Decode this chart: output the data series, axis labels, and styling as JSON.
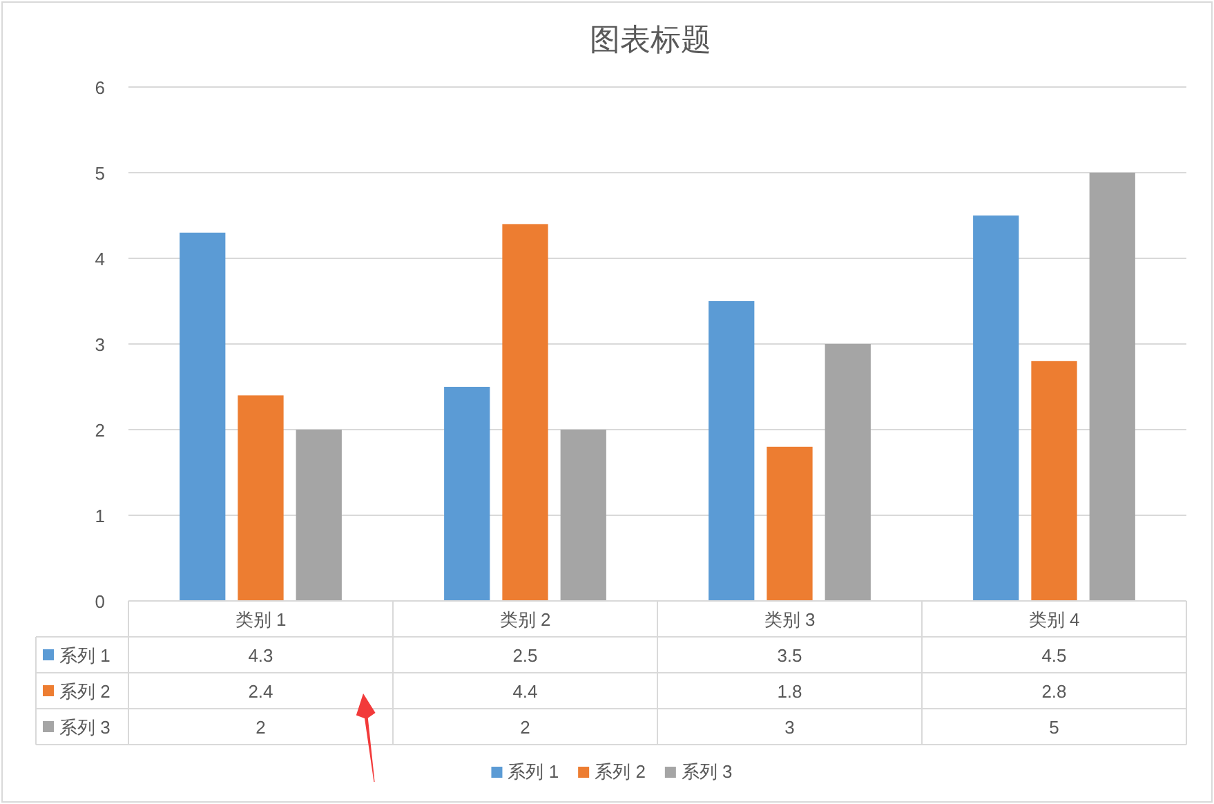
{
  "chart_data": {
    "type": "bar",
    "title": "图表标题",
    "categories": [
      "类别 1",
      "类别 2",
      "类别 3",
      "类别 4"
    ],
    "series": [
      {
        "name": "系列 1",
        "color": "#5b9bd5",
        "values": [
          4.3,
          2.5,
          3.5,
          4.5
        ]
      },
      {
        "name": "系列 2",
        "color": "#ed7d31",
        "values": [
          2.4,
          4.4,
          1.8,
          2.8
        ]
      },
      {
        "name": "系列 3",
        "color": "#a5a5a5",
        "values": [
          2,
          2,
          3,
          5
        ]
      }
    ],
    "ylim": [
      0,
      6
    ],
    "yticks": [
      0,
      1,
      2,
      3,
      4,
      5,
      6
    ],
    "grid": "y",
    "legend": "bottom",
    "data_labels": true
  }
}
